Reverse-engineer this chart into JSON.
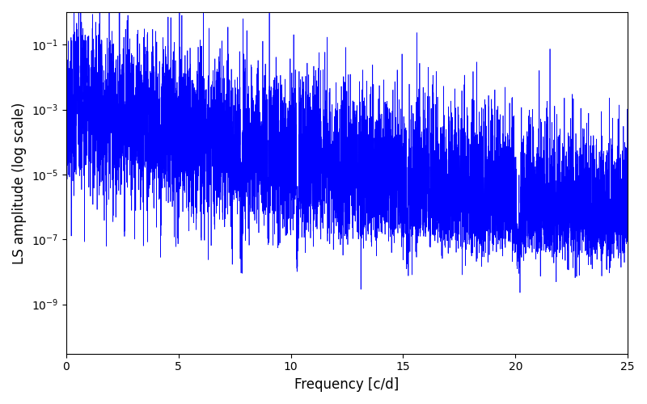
{
  "xlabel": "Frequency [c/d]",
  "ylabel": "LS amplitude (log scale)",
  "xlim": [
    0,
    25
  ],
  "ylim_log": [
    3e-11,
    1.0
  ],
  "yticks": [
    1e-09,
    1e-07,
    1e-05,
    0.001,
    0.1
  ],
  "line_color": "#0000ff",
  "line_width": 0.5,
  "seed": 42,
  "n_points": 8000,
  "freq_max": 25.0,
  "background_color": "#ffffff",
  "figsize": [
    8.0,
    5.0
  ],
  "dpi": 100
}
